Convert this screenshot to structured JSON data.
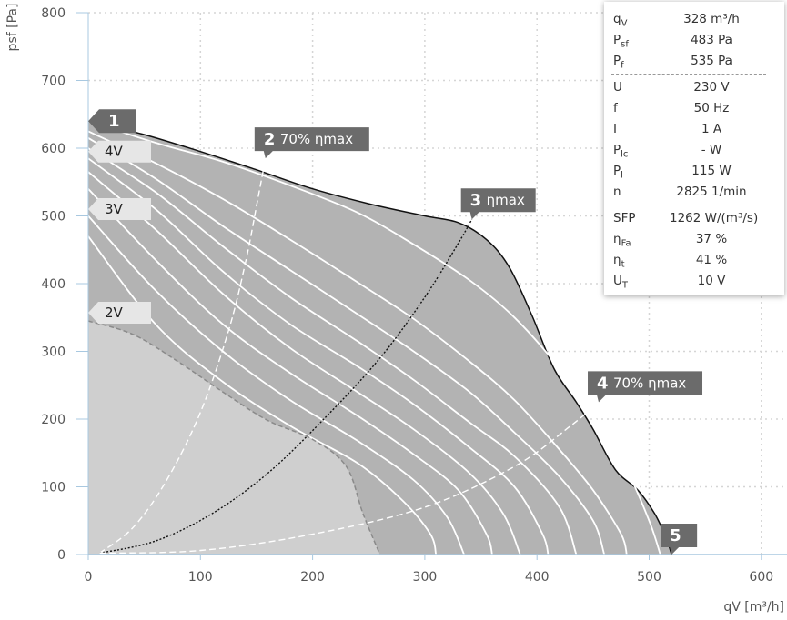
{
  "chart_data": {
    "type": "line",
    "xlabel": "qV [m³/h]",
    "ylabel": "psf [Pa]",
    "xlim": [
      0,
      625
    ],
    "ylim": [
      0,
      800
    ],
    "x_ticks": [
      0,
      100,
      200,
      300,
      400,
      500,
      600
    ],
    "y_ticks": [
      0,
      100,
      200,
      300,
      400,
      500,
      600,
      700,
      800
    ],
    "grid": true,
    "envelope": [
      [
        0,
        640
      ],
      [
        50,
        620
      ],
      [
        100,
        595
      ],
      [
        150,
        568
      ],
      [
        200,
        540
      ],
      [
        250,
        518
      ],
      [
        300,
        500
      ],
      [
        330,
        490
      ],
      [
        355,
        465
      ],
      [
        375,
        425
      ],
      [
        395,
        355
      ],
      [
        415,
        275
      ],
      [
        435,
        225
      ],
      [
        450,
        185
      ],
      [
        470,
        125
      ],
      [
        490,
        95
      ],
      [
        505,
        60
      ],
      [
        515,
        25
      ],
      [
        520,
        0
      ]
    ],
    "speed_curves": [
      [
        [
          0,
          640
        ],
        [
          60,
          608
        ],
        [
          120,
          580
        ],
        [
          180,
          545
        ],
        [
          240,
          505
        ],
        [
          290,
          458
        ],
        [
          340,
          405
        ],
        [
          380,
          350
        ],
        [
          420,
          275
        ],
        [
          450,
          205
        ],
        [
          480,
          125
        ],
        [
          500,
          50
        ],
        [
          510,
          0
        ]
      ],
      [
        [
          0,
          625
        ],
        [
          60,
          578
        ],
        [
          120,
          525
        ],
        [
          180,
          465
        ],
        [
          240,
          402
        ],
        [
          290,
          348
        ],
        [
          340,
          285
        ],
        [
          380,
          228
        ],
        [
          420,
          155
        ],
        [
          450,
          95
        ],
        [
          475,
          30
        ],
        [
          480,
          0
        ]
      ],
      [
        [
          0,
          615
        ],
        [
          60,
          555
        ],
        [
          120,
          485
        ],
        [
          180,
          420
        ],
        [
          240,
          355
        ],
        [
          290,
          300
        ],
        [
          340,
          240
        ],
        [
          380,
          180
        ],
        [
          420,
          115
        ],
        [
          450,
          50
        ],
        [
          460,
          0
        ]
      ],
      [
        [
          0,
          600
        ],
        [
          60,
          535
        ],
        [
          120,
          455
        ],
        [
          180,
          380
        ],
        [
          240,
          315
        ],
        [
          290,
          258
        ],
        [
          340,
          195
        ],
        [
          380,
          145
        ],
        [
          420,
          70
        ],
        [
          435,
          0
        ]
      ],
      [
        [
          0,
          585
        ],
        [
          60,
          510
        ],
        [
          120,
          418
        ],
        [
          180,
          340
        ],
        [
          240,
          278
        ],
        [
          290,
          222
        ],
        [
          340,
          158
        ],
        [
          380,
          100
        ],
        [
          405,
          30
        ],
        [
          410,
          0
        ]
      ],
      [
        [
          0,
          565
        ],
        [
          60,
          480
        ],
        [
          120,
          385
        ],
        [
          180,
          305
        ],
        [
          240,
          240
        ],
        [
          290,
          185
        ],
        [
          340,
          120
        ],
        [
          370,
          60
        ],
        [
          385,
          0
        ]
      ],
      [
        [
          0,
          540
        ],
        [
          60,
          435
        ],
        [
          120,
          340
        ],
        [
          180,
          268
        ],
        [
          240,
          205
        ],
        [
          290,
          148
        ],
        [
          330,
          95
        ],
        [
          355,
          30
        ],
        [
          360,
          0
        ]
      ],
      [
        [
          0,
          500
        ],
        [
          60,
          390
        ],
        [
          120,
          300
        ],
        [
          180,
          228
        ],
        [
          240,
          168
        ],
        [
          290,
          110
        ],
        [
          320,
          55
        ],
        [
          335,
          0
        ]
      ],
      [
        [
          0,
          470
        ],
        [
          60,
          340
        ],
        [
          120,
          255
        ],
        [
          180,
          190
        ],
        [
          240,
          135
        ],
        [
          280,
          80
        ],
        [
          305,
          30
        ],
        [
          310,
          0
        ]
      ]
    ],
    "speed_curve_2V": [
      [
        0,
        345
      ],
      [
        40,
        325
      ],
      [
        80,
        285
      ],
      [
        120,
        240
      ],
      [
        160,
        198
      ],
      [
        200,
        170
      ],
      [
        230,
        130
      ],
      [
        245,
        60
      ],
      [
        260,
        0
      ]
    ],
    "system_curves": [
      {
        "label": "70% ηmax",
        "points": [
          [
            10,
            2
          ],
          [
            40,
            40
          ],
          [
            70,
            110
          ],
          [
            100,
            210
          ],
          [
            125,
            330
          ],
          [
            140,
            430
          ],
          [
            150,
            515
          ],
          [
            158,
            585
          ]
        ]
      },
      {
        "label": "ηmax",
        "points": [
          [
            10,
            2
          ],
          [
            60,
            20
          ],
          [
            110,
            60
          ],
          [
            160,
            120
          ],
          [
            210,
            200
          ],
          [
            260,
            290
          ],
          [
            300,
            380
          ],
          [
            330,
            460
          ],
          [
            342,
            495
          ]
        ]
      },
      {
        "label": "70% ηmax",
        "points": [
          [
            10,
            2
          ],
          [
            100,
            6
          ],
          [
            200,
            30
          ],
          [
            300,
            70
          ],
          [
            380,
            130
          ],
          [
            430,
            190
          ],
          [
            455,
            225
          ]
        ]
      }
    ],
    "callouts": [
      {
        "num": "1",
        "text": ""
      },
      {
        "num": "2",
        "text": "70% ηmax"
      },
      {
        "num": "3",
        "text": "ηmax"
      },
      {
        "num": "4",
        "text": "70% ηmax"
      },
      {
        "num": "5",
        "text": ""
      }
    ],
    "voltage_tags": [
      "4V",
      "3V",
      "2V"
    ],
    "colors": {
      "outer_region": "#b3b3b3",
      "inner_region": "#cfcfcf",
      "callout_bg": "#6b6b6b",
      "tag_bg": "#e6e6e6",
      "grid": "#d5d5d5",
      "axis": "#a8c8e0"
    }
  },
  "info": {
    "rows": [
      {
        "label": "q",
        "sub": "V",
        "value": "328 m³/h"
      },
      {
        "label": "P",
        "sub": "sf",
        "value": "483 Pa"
      },
      {
        "label": "P",
        "sub": "f",
        "value": "535 Pa"
      },
      {
        "label": "U",
        "sub": "",
        "value": "230 V"
      },
      {
        "label": "f",
        "sub": "",
        "value": "50 Hz"
      },
      {
        "label": "I",
        "sub": "",
        "value": "1 A"
      },
      {
        "label": "P",
        "sub": "lc",
        "value": "- W"
      },
      {
        "label": "P",
        "sub": "l",
        "value": "115 W"
      },
      {
        "label": "n",
        "sub": "",
        "value": "2825 1/min"
      },
      {
        "label": "SFP",
        "sub": "",
        "value": "1262 W/(m³/s)"
      },
      {
        "label": "η",
        "sub": "Fa",
        "value": "37 %"
      },
      {
        "label": "η",
        "sub": "t",
        "value": "41 %"
      },
      {
        "label": "U",
        "sub": "T",
        "value": "10 V"
      }
    ]
  }
}
